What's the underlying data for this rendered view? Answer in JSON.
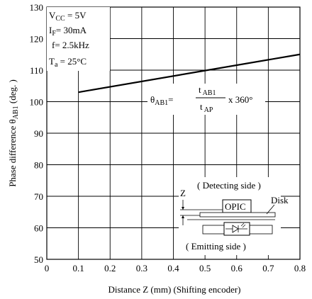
{
  "chart_data": {
    "type": "line",
    "xlabel": "Distance Z (mm) (Shifting encoder)",
    "ylabel": "Phase difference θAB1 (deg.)",
    "xlim": [
      0,
      0.8
    ],
    "ylim": [
      50,
      130
    ],
    "x_ticks": [
      "0",
      "0.1",
      "0.2",
      "0.3",
      "0.4",
      "0.5",
      "0.6",
      "0.7",
      "0.8"
    ],
    "y_ticks": [
      "50",
      "60",
      "70",
      "80",
      "90",
      "100",
      "110",
      "120",
      "130"
    ],
    "grid": true,
    "series": [
      {
        "x": [
          0.1,
          0.8
        ],
        "y": [
          103,
          115
        ]
      }
    ],
    "conditions": [
      "VCC = 5V",
      "IF = 30mA",
      "f= 2.5kHz",
      "Ta = 25°C"
    ],
    "formula": {
      "lhs": "θAB1=",
      "numerator": "t AB1",
      "denominator": "t AP",
      "rhs": "x 360°"
    },
    "inset": {
      "detecting_side": "( Detecting side )",
      "emitting_side": "( Emitting side )",
      "opic": "OPIC",
      "disk": "Disk",
      "z": "Z"
    }
  }
}
